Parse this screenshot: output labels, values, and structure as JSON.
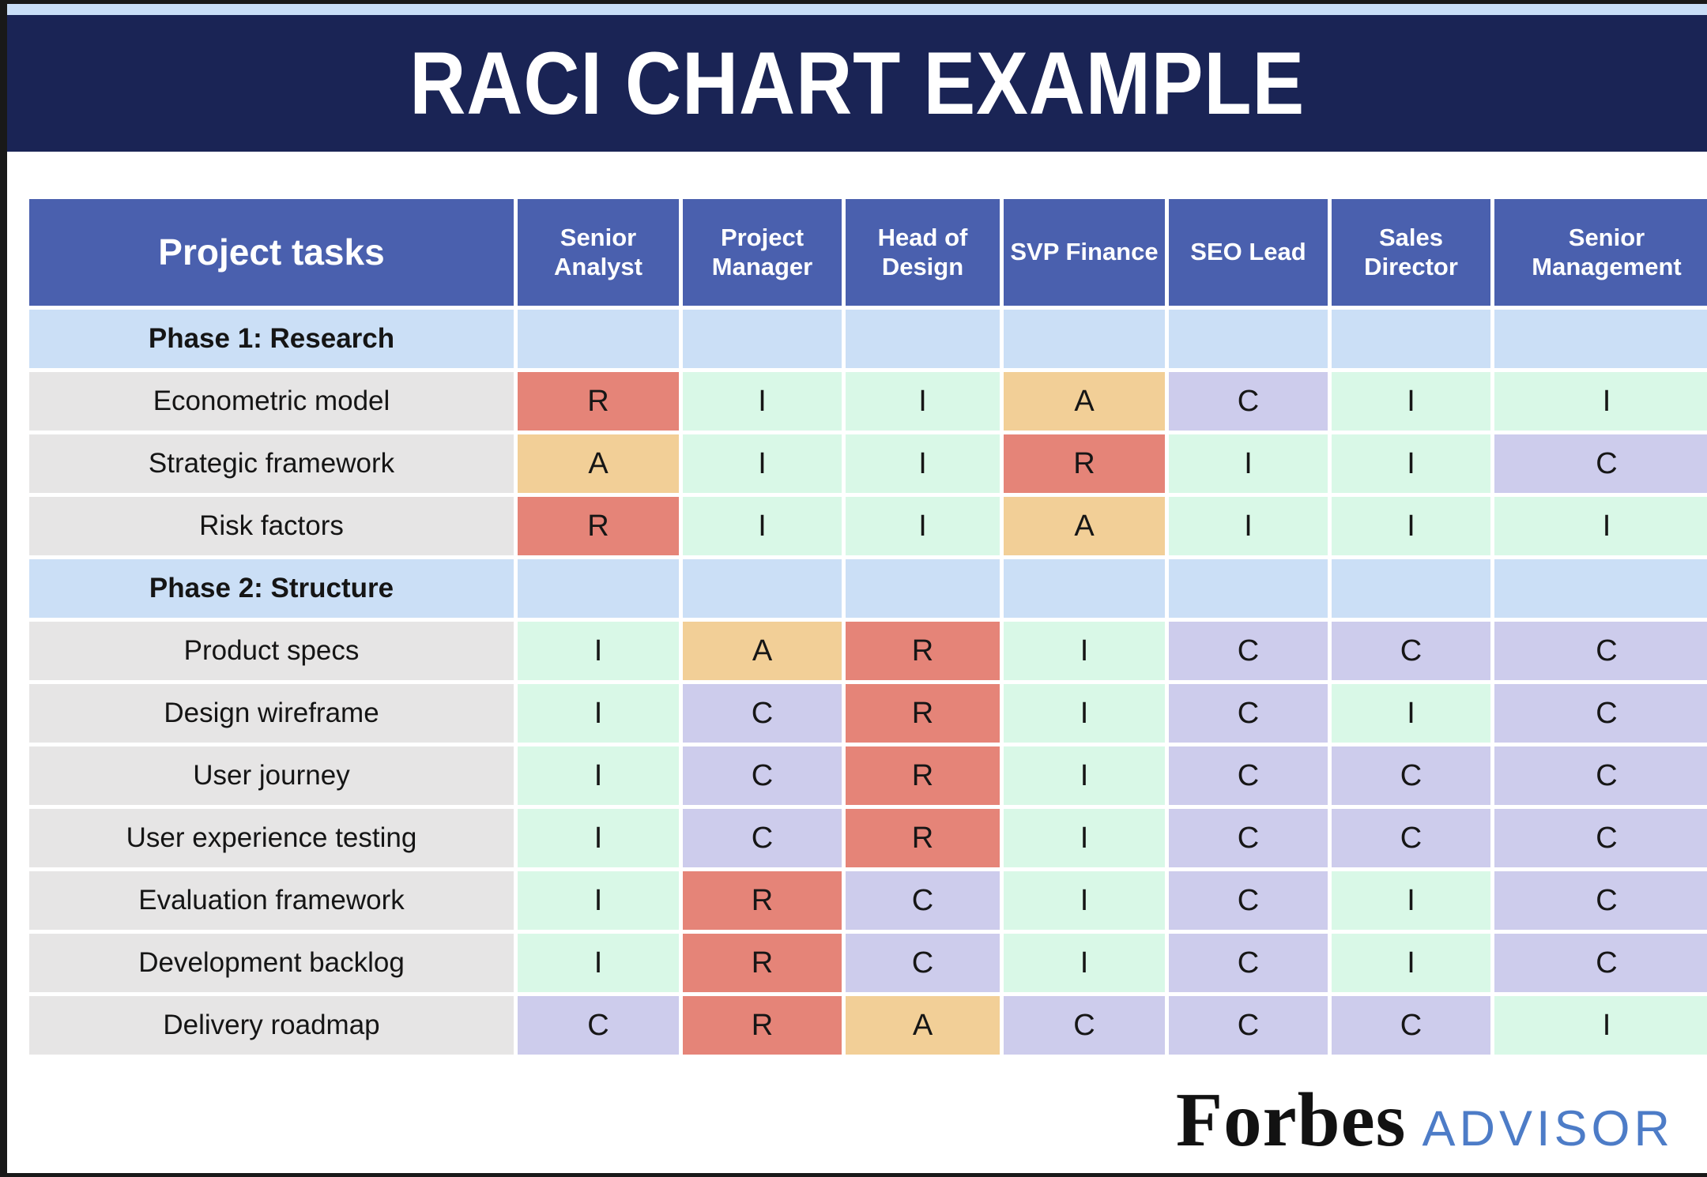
{
  "title": "RACI CHART EXAMPLE",
  "table": {
    "task_column_header": "Project tasks",
    "columns": [
      "Senior Analyst",
      "Project Manager",
      "Head of Design",
      "SVP Finance",
      "SEO Lead",
      "Sales Director",
      "Senior Management"
    ],
    "rows": [
      {
        "type": "phase",
        "label": "Phase 1: Research"
      },
      {
        "type": "task",
        "label": "Econometric model",
        "cells": [
          "R",
          "I",
          "I",
          "A",
          "C",
          "I",
          "I"
        ]
      },
      {
        "type": "task",
        "label": "Strategic framework",
        "cells": [
          "A",
          "I",
          "I",
          "R",
          "I",
          "I",
          "C"
        ]
      },
      {
        "type": "task",
        "label": "Risk factors",
        "cells": [
          "R",
          "I",
          "I",
          "A",
          "I",
          "I",
          "I"
        ]
      },
      {
        "type": "phase",
        "label": "Phase 2: Structure"
      },
      {
        "type": "task",
        "label": "Product specs",
        "cells": [
          "I",
          "A",
          "R",
          "I",
          "C",
          "C",
          "C"
        ]
      },
      {
        "type": "task",
        "label": "Design wireframe",
        "cells": [
          "I",
          "C",
          "R",
          "I",
          "C",
          "I",
          "C"
        ]
      },
      {
        "type": "task",
        "label": "User journey",
        "cells": [
          "I",
          "C",
          "R",
          "I",
          "C",
          "C",
          "C"
        ]
      },
      {
        "type": "task",
        "label": "User experience testing",
        "cells": [
          "I",
          "C",
          "R",
          "I",
          "C",
          "C",
          "C"
        ]
      },
      {
        "type": "task",
        "label": "Evaluation framework",
        "cells": [
          "I",
          "R",
          "C",
          "I",
          "C",
          "I",
          "C"
        ]
      },
      {
        "type": "task",
        "label": "Development backlog",
        "cells": [
          "I",
          "R",
          "C",
          "I",
          "C",
          "I",
          "C"
        ]
      },
      {
        "type": "task",
        "label": "Delivery roadmap",
        "cells": [
          "C",
          "R",
          "A",
          "C",
          "C",
          "C",
          "I"
        ]
      }
    ]
  },
  "colors": {
    "R": "#e58478",
    "A": "#f2cf97",
    "C": "#cdccec",
    "I": "#d9f8e7",
    "header_blue": "#4a60ae",
    "phase_blue": "#cbdff6",
    "task_gray": "#e6e5e5",
    "banner_navy": "#1a2455",
    "top_strip_blue": "#c9def7",
    "advisor_blue": "#4d7cc7"
  },
  "footer": {
    "brand": "Forbes",
    "brand_suffix": "ADVISOR"
  }
}
